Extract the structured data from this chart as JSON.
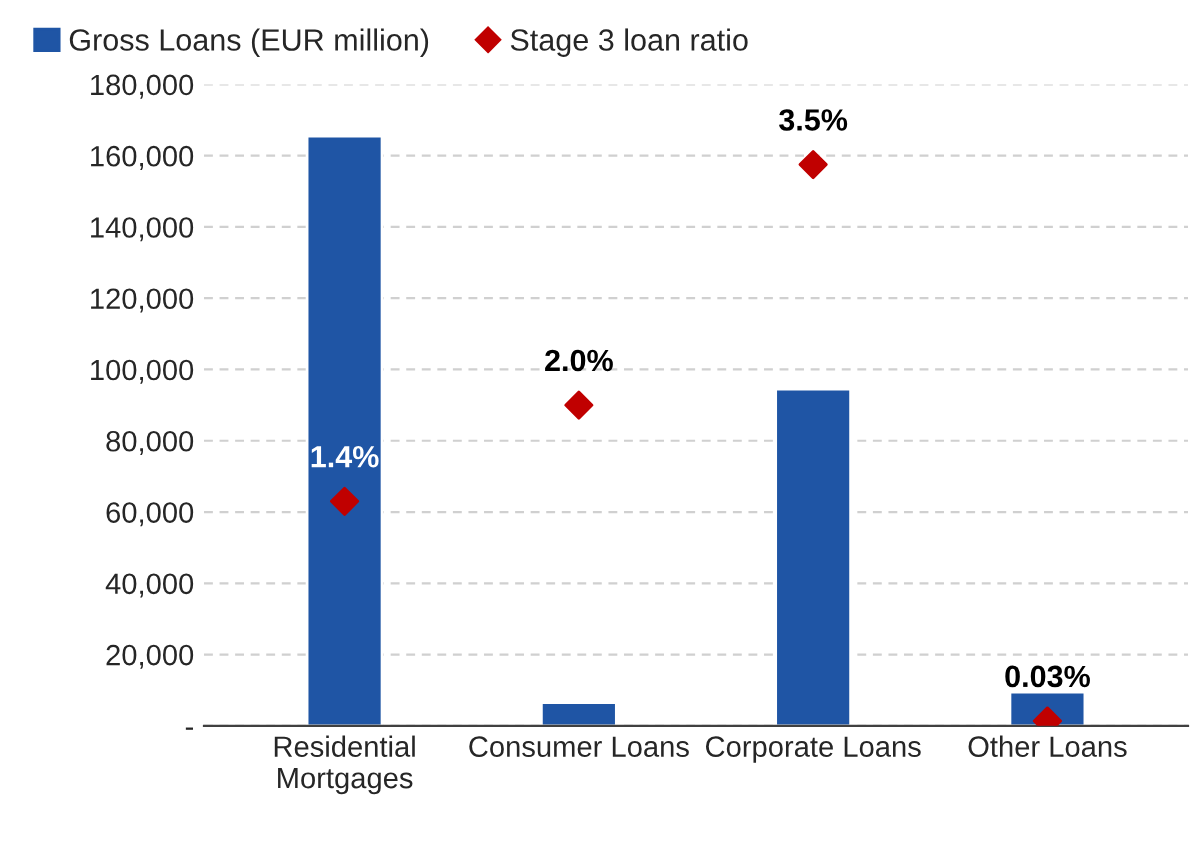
{
  "chart_data": {
    "type": "bar",
    "categories": [
      "Residential\nMortgages",
      "Consumer Loans",
      "Corporate Loans",
      "Other Loans"
    ],
    "series": [
      {
        "name": "Gross Loans (EUR million)",
        "color": "#1f55a5",
        "values": [
          165500,
          6500,
          94500,
          9500
        ]
      },
      {
        "name": "Stage 3 loan ratio",
        "type": "scatter",
        "axis": "y2",
        "color": "#c00000",
        "marker": "diamond",
        "values": [
          1.4,
          2.0,
          3.5,
          0.03
        ],
        "value_labels": [
          "1.4%",
          "2.0%",
          "3.5%",
          "0.03%"
        ]
      }
    ],
    "ylim": [
      0,
      180000
    ],
    "yticks": [
      {
        "value": 0,
        "label": "-"
      },
      {
        "value": 20000,
        "label": "20,000"
      },
      {
        "value": 40000,
        "label": "40,000"
      },
      {
        "value": 60000,
        "label": "60,000"
      },
      {
        "value": 80000,
        "label": "80,000"
      },
      {
        "value": 100000,
        "label": "100,000"
      },
      {
        "value": 120000,
        "label": "120,000"
      },
      {
        "value": 140000,
        "label": "140,000"
      },
      {
        "value": 160000,
        "label": "160,000"
      },
      {
        "value": 180000,
        "label": "180,000"
      }
    ],
    "y2lim": [
      0,
      4.0
    ],
    "grid": "y",
    "legend": "top left"
  }
}
